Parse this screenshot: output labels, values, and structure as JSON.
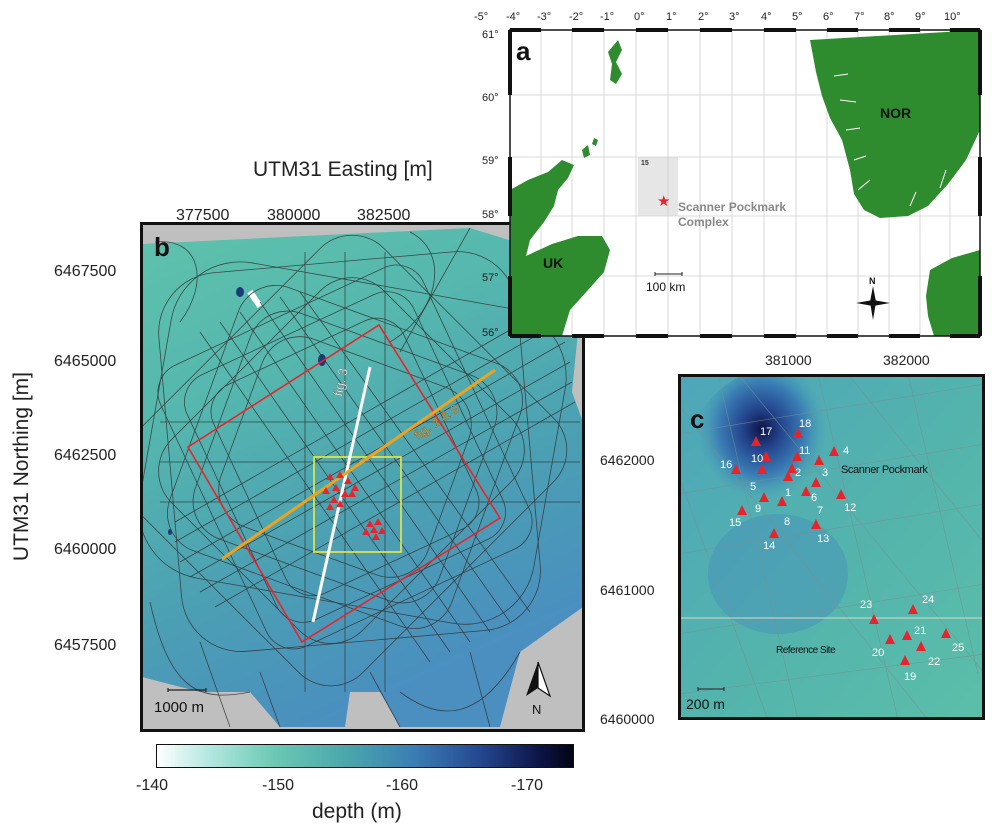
{
  "panel_b": {
    "letter": "b",
    "x_axis_title": "UTM31 Easting [m]",
    "y_axis_title": "UTM31 Northing [m]",
    "x_ticks": [
      "377500",
      "380000",
      "382500"
    ],
    "y_ticks": [
      "6467500",
      "6465000",
      "6462500",
      "6460000",
      "6457500"
    ],
    "line_label_fig3": "fig. 3",
    "line_label_fig29": "fig. 2 & 9",
    "scalebar_label": "1000 m",
    "north_label": "N",
    "colors": {
      "red_box": "#e8242a",
      "yellow_box": "#f2ea3a",
      "orange_line": "#f0a21c",
      "white_line": "#ffffff",
      "tracks": "#333333"
    }
  },
  "panel_a": {
    "letter": "a",
    "lon_ticks": [
      "-5°",
      "-4°",
      "-3°",
      "-2°",
      "-1°",
      "0°",
      "1°",
      "2°",
      "3°",
      "4°",
      "5°",
      "6°",
      "7°",
      "8°",
      "9°",
      "10°"
    ],
    "lat_ticks": [
      "61°",
      "60°",
      "59°",
      "58°",
      "57°",
      "56°"
    ],
    "block_label": "15",
    "star_label_line1": "Scanner Pockmark",
    "star_label_line2": "Complex",
    "country_uk": "UK",
    "country_nor": "NOR",
    "scalebar_label": "100 km",
    "north_label": "N",
    "colors": {
      "land": "#2e8b2e",
      "sea": "#ffffff",
      "star": "#e8242a",
      "block": "#e6e6e6"
    }
  },
  "panel_c": {
    "letter": "c",
    "x_ticks": [
      "381000",
      "382000"
    ],
    "y_ticks": [
      "6462000",
      "6461000",
      "6460000"
    ],
    "scanner_label": "Scanner Pockmark",
    "reference_label": "Reference Site",
    "scalebar_label": "200 m",
    "stations": [
      "1",
      "2",
      "3",
      "4",
      "5",
      "6",
      "7",
      "8",
      "9",
      "10",
      "11",
      "12",
      "13",
      "14",
      "15",
      "16",
      "17",
      "18",
      "19",
      "20",
      "21",
      "22",
      "23",
      "24",
      "25"
    ],
    "colors": {
      "marker": "#e8242a"
    }
  },
  "colorbar": {
    "ticks": [
      "-140",
      "-150",
      "-160",
      "-170"
    ],
    "label": "depth (m)",
    "gradient": [
      "#ffffff",
      "#b7e8e2",
      "#6cc9b4",
      "#4aa8ac",
      "#3a7db5",
      "#24468f",
      "#0d1446",
      "#020414"
    ]
  }
}
